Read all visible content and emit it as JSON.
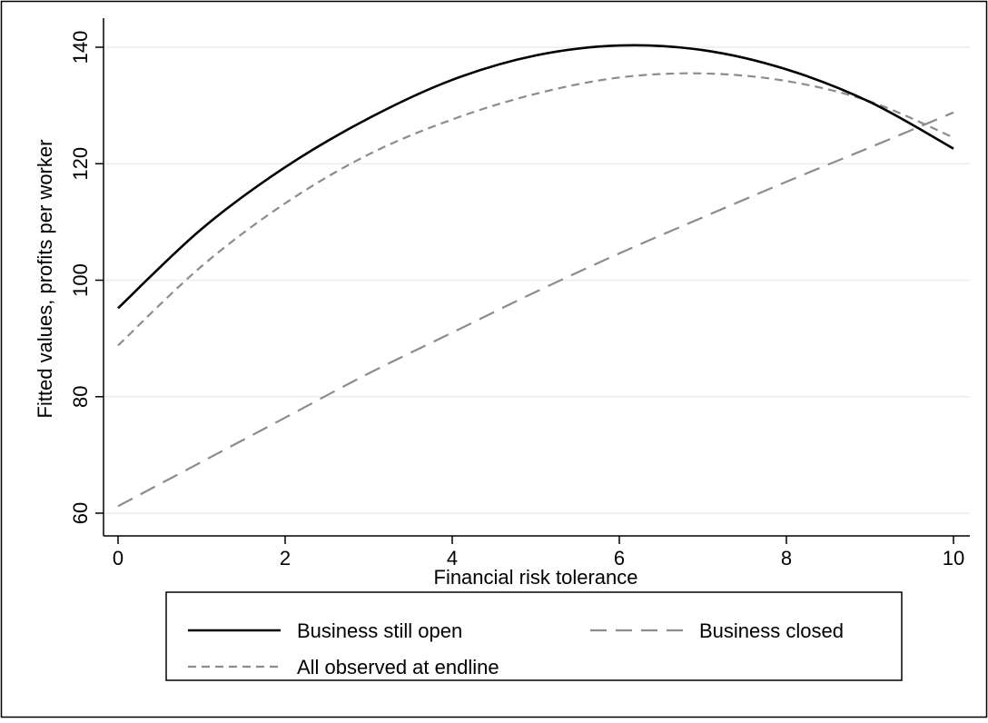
{
  "chart_data": {
    "type": "line",
    "xlabel": "Financial risk tolerance",
    "ylabel": "Fitted values, profits per worker",
    "xlim": [
      0,
      10
    ],
    "ylim": [
      60,
      140
    ],
    "xticks": [
      0,
      2,
      4,
      6,
      8,
      10
    ],
    "yticks": [
      60,
      80,
      100,
      120,
      140
    ],
    "grid": "horizontal",
    "legend_position": "bottom",
    "x": [
      0,
      1,
      2,
      3,
      4,
      5,
      6,
      7,
      8,
      9,
      10
    ],
    "series": [
      {
        "name": "Business still open",
        "style": "solid",
        "color": "#000000",
        "values": [
          95.2,
          108.8,
          119.4,
          127.8,
          134.4,
          138.6,
          140.3,
          139.5,
          136.2,
          130.6,
          122.6
        ]
      },
      {
        "name": "Business closed",
        "style": "long-dash",
        "color": "#8c8c8c",
        "values": [
          61.2,
          68.8,
          76.4,
          84.0,
          91.0,
          98.0,
          104.6,
          110.8,
          116.9,
          122.8,
          128.8
        ]
      },
      {
        "name": "All observed at endline",
        "style": "short-dash",
        "color": "#8c8c8c",
        "values": [
          88.8,
          102.4,
          113.2,
          121.6,
          127.6,
          132.0,
          134.8,
          135.5,
          134.2,
          130.7,
          124.5
        ]
      }
    ]
  }
}
